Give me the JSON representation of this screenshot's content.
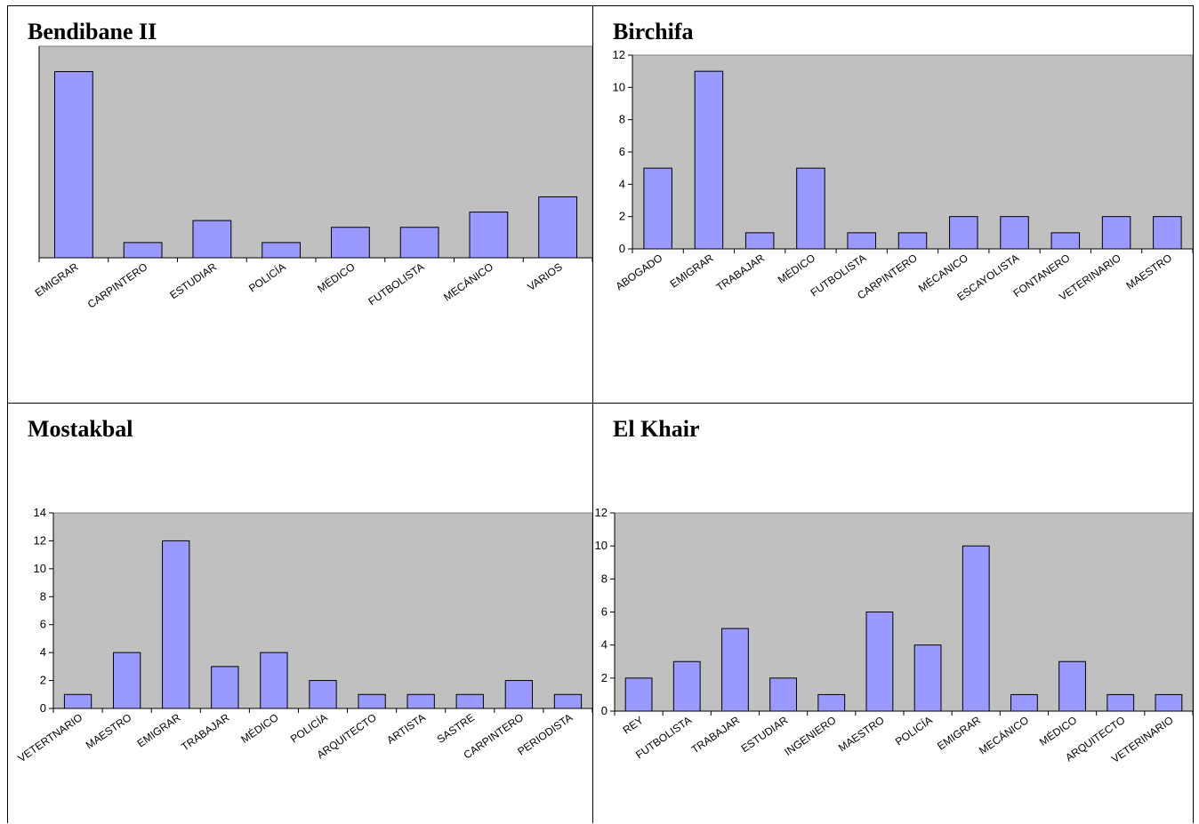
{
  "chart_data": [
    {
      "type": "bar",
      "title": "Bendibane II",
      "categories": [
        "EMIGRAR",
        "CARPINTERO",
        "ESTUDIAR",
        "POLICÍA",
        "MÉDICO",
        "FUTBOLISTA",
        "MECÁNICO",
        "VARIOS"
      ],
      "values": [
        11,
        0.9,
        2.2,
        0.9,
        1.8,
        1.8,
        2.7,
        3.6
      ],
      "ylim": [
        0,
        12.5
      ],
      "yticks": [],
      "grid": false,
      "bar_color": "#9999ff",
      "plot_bg": "#c0c0c0"
    },
    {
      "type": "bar",
      "title": "Birchifa",
      "categories": [
        "ABOGADO",
        "EMIGRAR",
        "TRABAJAR",
        "MÉDICO",
        "FUTBOLISTA",
        "CARPINTERO",
        "MÉCANICO",
        "ESCAYOLISTA",
        "FONTANERO",
        "VETERINARIO",
        "MAESTRO"
      ],
      "values": [
        5,
        11,
        1,
        5,
        1,
        1,
        2,
        2,
        1,
        2,
        2
      ],
      "ylim": [
        0,
        12
      ],
      "yticks": [
        "0",
        "2",
        "4",
        "6",
        "8",
        "10",
        "12"
      ],
      "grid": false,
      "bar_color": "#9999ff",
      "plot_bg": "#c0c0c0"
    },
    {
      "type": "bar",
      "title": "Mostakbal",
      "categories": [
        "VETERTNARIO",
        "MAESTRO",
        "EMIGRAR",
        "TRABAJAR",
        "MÉDICO",
        "POLICÍA",
        "ARQUITECTO",
        "ARTISTA",
        "SASTRE",
        "CARPINTERO",
        "PERIODISTA"
      ],
      "values": [
        1,
        4,
        12,
        3,
        4,
        2,
        1,
        1,
        1,
        2,
        1
      ],
      "ylim": [
        0,
        14
      ],
      "yticks": [
        "0",
        "2",
        "4",
        "6",
        "8",
        "10",
        "12",
        "14"
      ],
      "grid": false,
      "bar_color": "#9999ff",
      "plot_bg": "#c0c0c0"
    },
    {
      "type": "bar",
      "title": "El Khair",
      "categories": [
        "REY",
        "FUTBOLISTA",
        "TRABAJAR",
        "ESTUDIAR",
        "INGENIERO",
        "MAESTRO",
        "POLICÍA",
        "EMIGRAR",
        "MECÁNICO",
        "MÉDICO",
        "ARQUITECTO",
        "VETERINARIO"
      ],
      "values": [
        2,
        3,
        5,
        2,
        1,
        6,
        4,
        10,
        1,
        3,
        1,
        1
      ],
      "ylim": [
        0,
        12
      ],
      "yticks": [
        "0",
        "2",
        "4",
        "6",
        "8",
        "10",
        "12"
      ],
      "grid": false,
      "bar_color": "#9999ff",
      "plot_bg": "#c0c0c0"
    }
  ]
}
